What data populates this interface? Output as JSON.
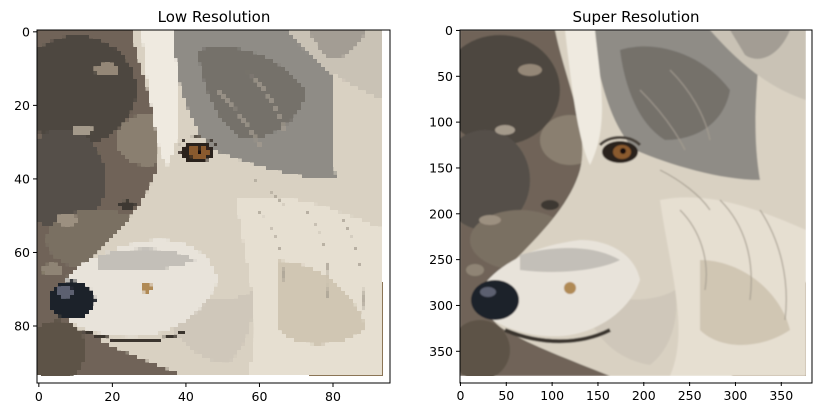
{
  "figure": {
    "subject": "wolf-head-profile",
    "panels": [
      {
        "id": "low-res",
        "title": "Low Resolution",
        "pixel_grid": 96,
        "x_ticks": [
          "0",
          "20",
          "40",
          "60",
          "80"
        ],
        "y_ticks": [
          "0",
          "20",
          "40",
          "60",
          "80"
        ]
      },
      {
        "id": "super-res",
        "title": "Super Resolution",
        "pixel_grid": 384,
        "x_ticks": [
          "0",
          "50",
          "100",
          "150",
          "200",
          "250",
          "300",
          "350"
        ],
        "y_ticks": [
          "0",
          "50",
          "100",
          "150",
          "200",
          "250",
          "300",
          "350"
        ]
      }
    ]
  }
}
